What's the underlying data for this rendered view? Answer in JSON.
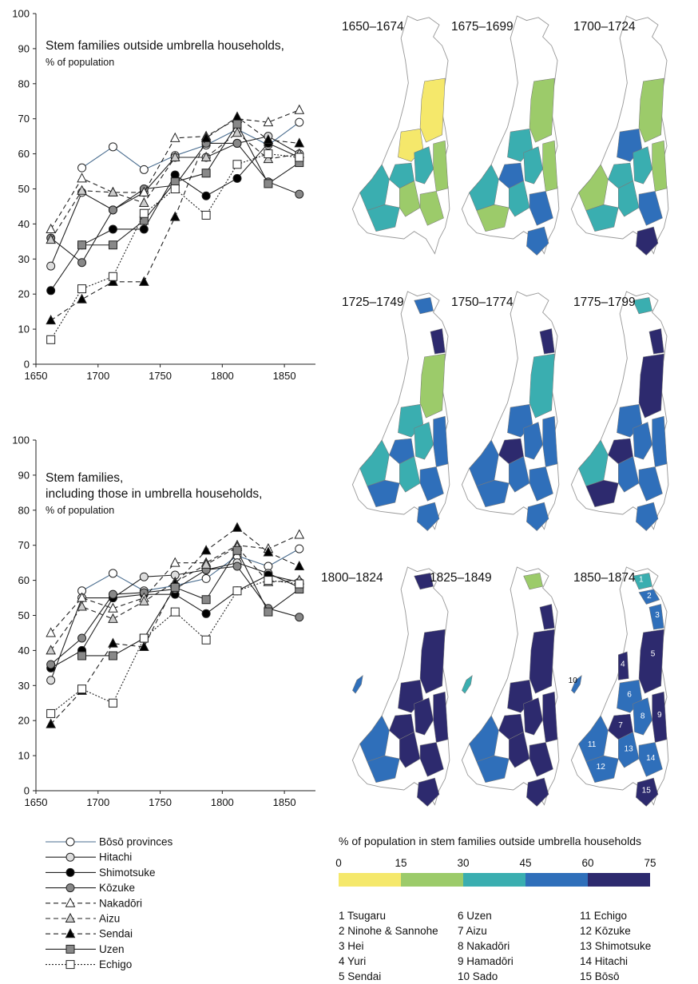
{
  "chart_data": [
    {
      "type": "line",
      "title": "Stem families outside umbrella households,",
      "subtitle": "% of population",
      "xlim": [
        1650,
        1875
      ],
      "ylim": [
        0,
        100
      ],
      "xticks": [
        1650,
        1700,
        1750,
        1800,
        1850
      ],
      "yticks": [
        0,
        10,
        20,
        30,
        40,
        50,
        60,
        70,
        80,
        90,
        100
      ],
      "x": [
        1662,
        1687,
        1712,
        1737,
        1762,
        1787,
        1812,
        1837,
        1862
      ],
      "series": [
        {
          "name": "Bōsō provinces",
          "values": [
            null,
            56,
            62,
            55.5,
            59.5,
            62.5,
            67,
            62.5,
            69
          ]
        },
        {
          "name": "Hitachi",
          "values": [
            28,
            49,
            44,
            49,
            59,
            59,
            63,
            65,
            60
          ]
        },
        {
          "name": "Shimotsuke",
          "values": [
            21,
            34,
            38.5,
            38.5,
            54,
            48,
            53,
            63,
            59
          ]
        },
        {
          "name": "Kōzuke",
          "values": [
            36,
            29,
            44,
            50,
            51,
            63,
            63,
            52,
            48.5
          ]
        },
        {
          "name": "Nakadōri",
          "values": [
            38.5,
            53,
            49,
            49,
            64.5,
            65,
            70,
            69,
            72.5
          ]
        },
        {
          "name": "Aizu",
          "values": [
            35.5,
            49.5,
            49,
            46,
            59,
            59,
            66,
            58.5,
            60
          ]
        },
        {
          "name": "Sendai",
          "values": [
            12.5,
            18.5,
            23.5,
            23.5,
            42,
            64.5,
            70.5,
            64,
            63
          ]
        },
        {
          "name": "Uzen",
          "values": [
            null,
            34,
            34,
            41,
            52,
            54.5,
            68.5,
            51.5,
            57.5
          ]
        },
        {
          "name": "Echigo",
          "values": [
            7,
            21.5,
            25,
            43,
            50,
            42.5,
            57,
            60,
            59
          ]
        }
      ]
    },
    {
      "type": "line",
      "title": "Stem families,",
      "subtitle1": "including those in umbrella households,",
      "subtitle": "% of population",
      "xlim": [
        1650,
        1875
      ],
      "ylim": [
        0,
        100
      ],
      "xticks": [
        1650,
        1700,
        1750,
        1800,
        1850
      ],
      "yticks": [
        0,
        10,
        20,
        30,
        40,
        50,
        60,
        70,
        80,
        90,
        100
      ],
      "x": [
        1662,
        1687,
        1712,
        1737,
        1762,
        1787,
        1812,
        1837,
        1862
      ],
      "series": [
        {
          "name": "Bōsō provinces",
          "values": [
            null,
            57,
            62,
            57,
            58.5,
            60.5,
            67,
            64,
            69
          ]
        },
        {
          "name": "Hitachi",
          "values": [
            31.5,
            55,
            55,
            61,
            61.5,
            63,
            65,
            62,
            58
          ]
        },
        {
          "name": "Shimotsuke",
          "values": [
            35,
            40,
            55,
            56,
            56,
            50.5,
            57,
            61.5,
            59.5
          ]
        },
        {
          "name": "Kōzuke",
          "values": [
            36,
            43.5,
            56,
            56.5,
            57.5,
            63,
            64,
            52,
            49.5
          ]
        },
        {
          "name": "Nakadōri",
          "values": [
            45,
            55,
            52,
            55,
            65,
            65,
            70,
            69,
            73
          ]
        },
        {
          "name": "Aizu",
          "values": [
            40,
            52.5,
            49,
            54,
            59.5,
            64.5,
            69.5,
            59.5,
            60
          ]
        },
        {
          "name": "Sendai",
          "values": [
            19,
            28.5,
            42,
            41,
            59,
            68.5,
            75,
            68,
            64
          ]
        },
        {
          "name": "Uzen",
          "values": [
            null,
            38.5,
            38.5,
            43.5,
            58,
            54.5,
            68.5,
            51,
            57.5
          ]
        },
        {
          "name": "Echigo",
          "values": [
            22,
            29,
            25,
            43.5,
            51,
            43,
            57,
            60,
            59
          ]
        }
      ]
    },
    {
      "type": "choropleth",
      "title": "% of population in stem families outside umbrella households",
      "bins": [
        "0",
        "15",
        "30",
        "45",
        "60",
        "75"
      ],
      "bin_colors": [
        "#f5e86b",
        "#9ccb6a",
        "#3aaeb0",
        "#2f6fba",
        "#2d2a6e"
      ],
      "periods": [
        "1650–1674",
        "1675–1699",
        "1700–1724",
        "1725–1749",
        "1750–1774",
        "1775–1799",
        "1800–1824",
        "1825–1849",
        "1850–1874"
      ],
      "regions": [
        "1 Tsugaru",
        "2 Ninohe & Sannohe",
        "3 Hei",
        "4 Yuri",
        "5 Sendai",
        "6 Uzen",
        "7 Aizu",
        "8 Nakadōri",
        "9 Hamadōri",
        "10 Sado",
        "11 Echigo",
        "12 Kōzuke",
        "13 Shimotsuke",
        "14 Hitachi",
        "15 Bōsō"
      ],
      "region_numbers": [
        "1",
        "2",
        "3",
        "4",
        "5",
        "6",
        "7",
        "8",
        "9",
        "10",
        "11",
        "12",
        "13",
        "14",
        "15"
      ],
      "map_bins": [
        [
          null,
          null,
          null,
          null,
          0,
          0,
          2,
          2,
          1,
          null,
          2,
          2,
          1,
          1,
          null
        ],
        [
          null,
          null,
          null,
          null,
          1,
          2,
          3,
          2,
          1,
          null,
          2,
          1,
          2,
          3,
          3
        ],
        [
          null,
          null,
          null,
          null,
          1,
          3,
          2,
          2,
          1,
          null,
          1,
          2,
          2,
          3,
          4
        ],
        [
          3,
          null,
          4,
          null,
          1,
          2,
          3,
          2,
          3,
          null,
          2,
          3,
          2,
          3,
          3
        ],
        [
          null,
          null,
          4,
          null,
          2,
          3,
          4,
          3,
          3,
          null,
          3,
          3,
          3,
          3,
          3
        ],
        [
          2,
          null,
          4,
          null,
          4,
          3,
          4,
          3,
          3,
          null,
          2,
          4,
          3,
          3,
          3
        ],
        [
          4,
          null,
          null,
          null,
          4,
          4,
          4,
          4,
          4,
          3,
          3,
          3,
          4,
          4,
          4
        ],
        [
          1,
          null,
          4,
          null,
          4,
          4,
          4,
          4,
          4,
          2,
          3,
          3,
          4,
          4,
          4
        ],
        [
          2,
          3,
          3,
          4,
          4,
          3,
          4,
          3,
          4,
          3,
          3,
          3,
          3,
          3,
          4
        ]
      ]
    }
  ],
  "legend": [
    {
      "name": "Bōsō provinces",
      "line": "#4a6d8f",
      "dash": "",
      "marker": "circle",
      "fill": "#fff"
    },
    {
      "name": "Hitachi",
      "line": "#222",
      "dash": "",
      "marker": "circle",
      "fill": "#ddd"
    },
    {
      "name": "Shimotsuke",
      "line": "#222",
      "dash": "",
      "marker": "circle",
      "fill": "#000"
    },
    {
      "name": "Kōzuke",
      "line": "#222",
      "dash": "",
      "marker": "circle",
      "fill": "#888"
    },
    {
      "name": "Nakadōri",
      "line": "#222",
      "dash": "6,4",
      "marker": "triangle",
      "fill": "#fff"
    },
    {
      "name": "Aizu",
      "line": "#222",
      "dash": "6,4",
      "marker": "triangle",
      "fill": "#ccc"
    },
    {
      "name": "Sendai",
      "line": "#222",
      "dash": "6,4",
      "marker": "triangle",
      "fill": "#000"
    },
    {
      "name": "Uzen",
      "line": "#222",
      "dash": "",
      "marker": "square",
      "fill": "#888"
    },
    {
      "name": "Echigo",
      "line": "#222",
      "dash": "2,2",
      "marker": "square",
      "fill": "#fff"
    }
  ]
}
